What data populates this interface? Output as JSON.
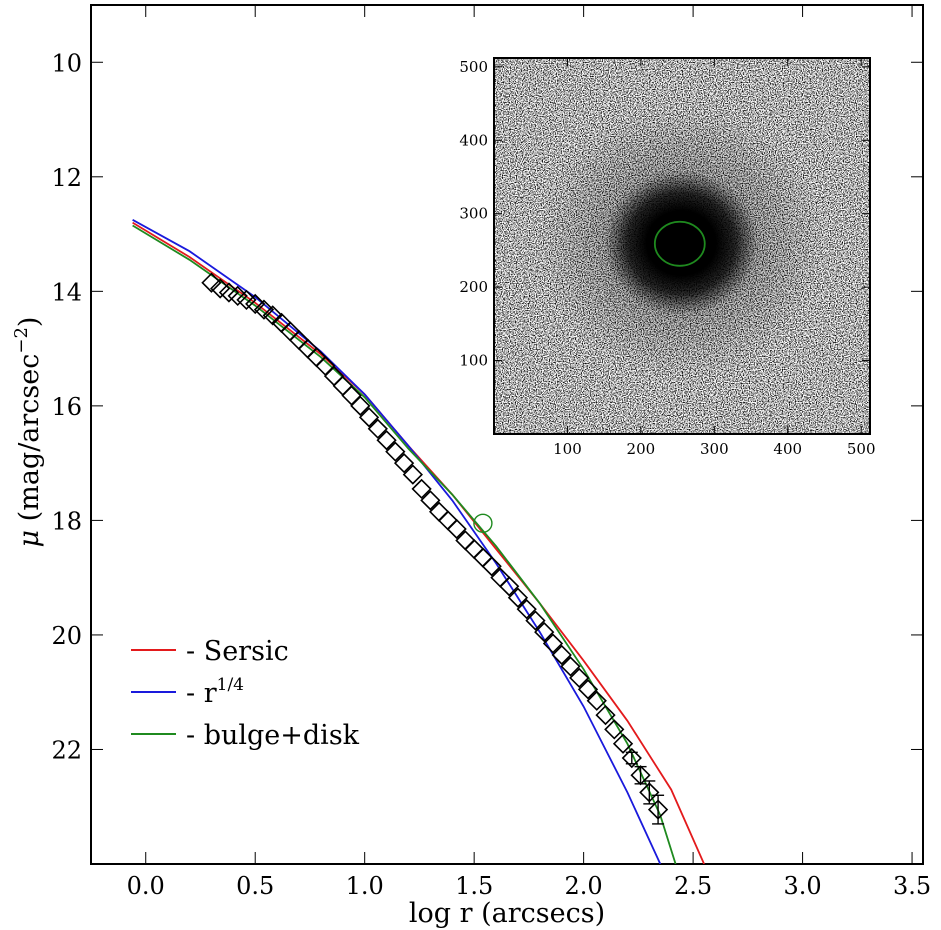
{
  "chart_data": [
    {
      "type": "scatter",
      "xlabel": "log r (arcsecs)",
      "ylabel": "μ (mag/arcsec⁻²)",
      "ylabel_parts": {
        "mu": "μ",
        "pre": "(mag/arcsec",
        "exp": "−2",
        "post": ")"
      },
      "xlim": [
        -0.25,
        3.55
      ],
      "ylim": [
        24,
        9
      ],
      "y_inverted": true,
      "grid": false,
      "legend_position": "lower-left",
      "x_ticks": [
        0.0,
        0.5,
        1.0,
        1.5,
        2.0,
        2.5,
        3.0,
        3.5
      ],
      "x_tick_labels": [
        "0.0",
        "0.5",
        "1.0",
        "1.5",
        "2.0",
        "2.5",
        "3.0",
        "3.5"
      ],
      "y_ticks": [
        10,
        12,
        14,
        16,
        18,
        20,
        22
      ],
      "y_tick_labels": [
        "10",
        "12",
        "14",
        "16",
        "18",
        "20",
        "22"
      ],
      "series": [
        {
          "kind": "line",
          "name": "Sersic",
          "legend_text": "- Sersic",
          "color": "#e31a1c",
          "x": [
            -0.06,
            0.2,
            0.5,
            0.8,
            1.0,
            1.2,
            1.4,
            1.6,
            1.8,
            2.0,
            2.2,
            2.4,
            2.55
          ],
          "y": [
            12.8,
            13.4,
            14.2,
            15.1,
            15.8,
            16.7,
            17.55,
            18.5,
            19.45,
            20.45,
            21.5,
            22.7,
            24.0
          ]
        },
        {
          "kind": "line",
          "name": "r^1/4",
          "legend_text": "- r",
          "legend_sup": "1/4",
          "color": "#1a1adc",
          "x": [
            -0.06,
            0.2,
            0.5,
            0.8,
            1.0,
            1.2,
            1.4,
            1.6,
            1.8,
            2.0,
            2.2,
            2.35
          ],
          "y": [
            12.75,
            13.3,
            14.1,
            15.05,
            15.8,
            16.7,
            17.65,
            18.75,
            19.95,
            21.25,
            22.75,
            24.0
          ]
        },
        {
          "kind": "line",
          "name": "bulge+disk",
          "legend_text": "- bulge+disk",
          "color": "#1f8a1f",
          "x": [
            -0.06,
            0.2,
            0.5,
            0.8,
            1.0,
            1.2,
            1.4,
            1.6,
            1.8,
            2.0,
            2.2,
            2.35,
            2.42
          ],
          "y": [
            12.85,
            13.45,
            14.25,
            15.15,
            15.85,
            16.75,
            17.55,
            18.45,
            19.45,
            20.6,
            21.9,
            23.15,
            24.0
          ]
        },
        {
          "kind": "markers",
          "name": "data",
          "marker": "diamond",
          "x": [
            0.3,
            0.34,
            0.38,
            0.42,
            0.46,
            0.5,
            0.54,
            0.58,
            0.62,
            0.66,
            0.7,
            0.74,
            0.78,
            0.82,
            0.86,
            0.9,
            0.94,
            0.98,
            1.02,
            1.06,
            1.1,
            1.14,
            1.18,
            1.22,
            1.26,
            1.3,
            1.34,
            1.38,
            1.42,
            1.46,
            1.5,
            1.54,
            1.58,
            1.62,
            1.66,
            1.7,
            1.74,
            1.78,
            1.82,
            1.86,
            1.9,
            1.94,
            1.98,
            2.02,
            2.06,
            2.1,
            2.14,
            2.18,
            2.22,
            2.26,
            2.3,
            2.34
          ],
          "y": [
            13.85,
            13.95,
            14.02,
            14.08,
            14.15,
            14.22,
            14.32,
            14.42,
            14.55,
            14.7,
            14.85,
            15.0,
            15.15,
            15.3,
            15.48,
            15.65,
            15.82,
            16.0,
            16.2,
            16.4,
            16.6,
            16.8,
            17.0,
            17.2,
            17.45,
            17.65,
            17.85,
            18.0,
            18.15,
            18.35,
            18.5,
            18.65,
            18.8,
            19.0,
            19.15,
            19.35,
            19.55,
            19.75,
            19.95,
            20.15,
            20.35,
            20.55,
            20.75,
            20.95,
            21.15,
            21.4,
            21.65,
            21.9,
            22.15,
            22.45,
            22.75,
            23.05
          ],
          "error_bars": [
            {
              "x": 2.22,
              "y": 22.15,
              "err": 0.1
            },
            {
              "x": 2.26,
              "y": 22.45,
              "err": 0.15
            },
            {
              "x": 2.3,
              "y": 22.75,
              "err": 0.2
            },
            {
              "x": 2.34,
              "y": 23.05,
              "err": 0.25
            }
          ]
        },
        {
          "kind": "markers",
          "name": "marker",
          "marker": "circle",
          "color": "#1f8a1f",
          "x": [
            1.54
          ],
          "y": [
            18.05
          ]
        }
      ]
    },
    {
      "type": "heatmap",
      "xlim": [
        0,
        512
      ],
      "ylim": [
        0,
        512
      ],
      "x_ticks": [
        100,
        200,
        300,
        400,
        500
      ],
      "x_tick_labels": [
        "100",
        "200",
        "300",
        "400",
        "500"
      ],
      "y_ticks": [
        100,
        200,
        300,
        400,
        500
      ],
      "y_tick_labels": [
        "100",
        "200",
        "300",
        "400",
        "500"
      ],
      "colormap": "gray_r",
      "source_center": [
        255,
        260
      ],
      "ellipse": {
        "cx": 253,
        "cy": 259,
        "rx": 34,
        "ry": 30,
        "color": "#1f8a1f"
      }
    }
  ]
}
